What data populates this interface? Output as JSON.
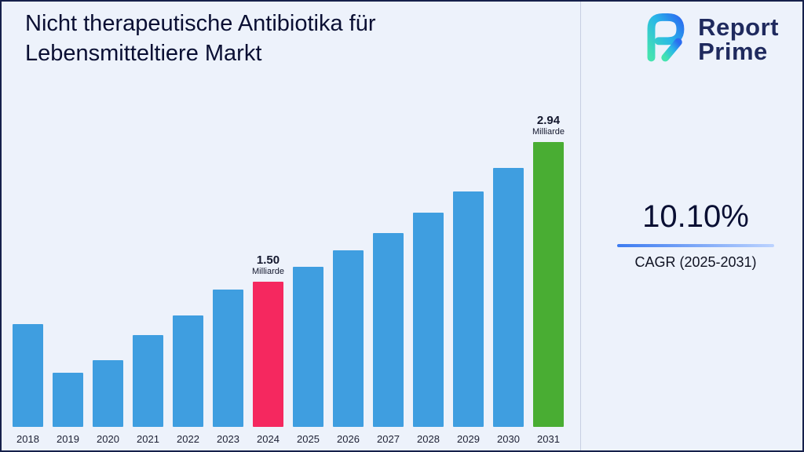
{
  "page": {
    "title": "Nicht therapeutische Antibiotika für Lebensmitteltiere Markt"
  },
  "logo": {
    "line1": "Report",
    "line2": "Prime",
    "icon": "report-prime-mark"
  },
  "stats": {
    "cagr_value": "10.10%",
    "cagr_label": "CAGR (2025-2031)"
  },
  "chart_data": {
    "type": "bar",
    "title": "Nicht therapeutische Antibiotika für Lebensmitteltiere Markt",
    "unit": "Milliarde",
    "ylim": [
      0,
      2.94
    ],
    "grid": false,
    "legend": "none",
    "colors": {
      "blue": "#3f9ee0",
      "pink": "#f5285f",
      "green": "#49ad33"
    },
    "categories": [
      "2018",
      "2019",
      "2020",
      "2021",
      "2022",
      "2023",
      "2024",
      "2025",
      "2026",
      "2027",
      "2028",
      "2029",
      "2030",
      "2031"
    ],
    "bars": [
      {
        "year": "2018",
        "value": 1.06,
        "color": "blue"
      },
      {
        "year": "2019",
        "value": 0.56,
        "color": "blue"
      },
      {
        "year": "2020",
        "value": 0.69,
        "color": "blue"
      },
      {
        "year": "2021",
        "value": 0.95,
        "color": "blue"
      },
      {
        "year": "2022",
        "value": 1.15,
        "color": "blue"
      },
      {
        "year": "2023",
        "value": 1.42,
        "color": "blue"
      },
      {
        "year": "2024",
        "value": 1.5,
        "color": "pink",
        "label": "1.50",
        "unit": "Milliarde"
      },
      {
        "year": "2025",
        "value": 1.65,
        "color": "blue"
      },
      {
        "year": "2026",
        "value": 1.82,
        "color": "blue"
      },
      {
        "year": "2027",
        "value": 2.0,
        "color": "blue"
      },
      {
        "year": "2028",
        "value": 2.21,
        "color": "blue"
      },
      {
        "year": "2029",
        "value": 2.43,
        "color": "blue"
      },
      {
        "year": "2030",
        "value": 2.67,
        "color": "blue"
      },
      {
        "year": "2031",
        "value": 2.94,
        "color": "green",
        "label": "2.94",
        "unit": "Milliarde"
      }
    ]
  }
}
